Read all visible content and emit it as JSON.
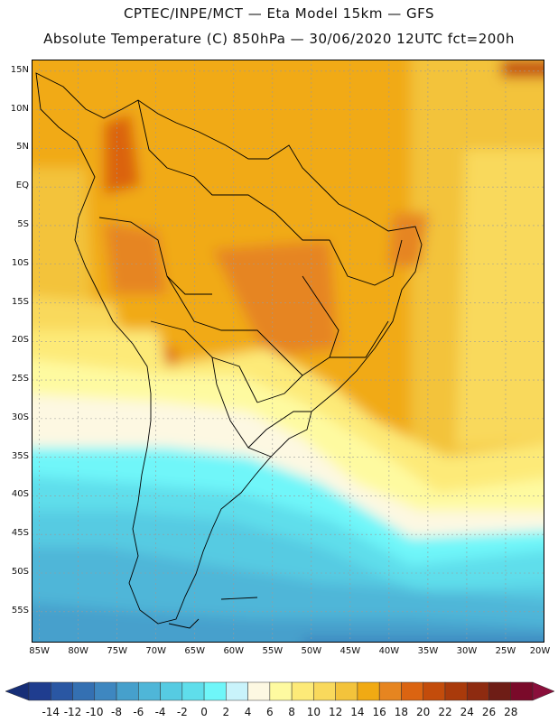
{
  "header": {
    "line1": "CPTEC/INPE/MCT —  Eta Model 15km — GFS",
    "line2": "Absolute Temperature (C) 850hPa — 30/06/2020 12UTC fct=200h"
  },
  "axes": {
    "lat_labels": [
      "15N",
      "10N",
      "5N",
      "EQ",
      "5S",
      "10S",
      "15S",
      "20S",
      "25S",
      "30S",
      "35S",
      "40S",
      "45S",
      "50S",
      "55S"
    ],
    "lat_values": [
      15,
      10,
      5,
      0,
      -5,
      -10,
      -15,
      -20,
      -25,
      -30,
      -35,
      -40,
      -45,
      -50,
      -55
    ],
    "lon_labels": [
      "85W",
      "80W",
      "75W",
      "70W",
      "65W",
      "60W",
      "55W",
      "50W",
      "45W",
      "40W",
      "35W",
      "30W",
      "25W",
      "20W"
    ],
    "lon_values": [
      -85,
      -80,
      -75,
      -70,
      -65,
      -60,
      -55,
      -50,
      -45,
      -40,
      -35,
      -30,
      -25,
      -20
    ],
    "lat_range": [
      -59,
      16.5
    ],
    "lon_range": [
      -86,
      -20
    ],
    "grid": true
  },
  "colorbar": {
    "labels": [
      "-14",
      "-12",
      "-10",
      "-8",
      "-6",
      "-4",
      "-2",
      "0",
      "2",
      "4",
      "6",
      "8",
      "10",
      "12",
      "14",
      "16",
      "18",
      "20",
      "22",
      "24",
      "26",
      "28"
    ],
    "colors": [
      "#1f3d8f",
      "#2a57a3",
      "#3470b2",
      "#3e87c0",
      "#46a0cc",
      "#4fb6d8",
      "#56cbe2",
      "#5fdeeb",
      "#6ff6f9",
      "#c9f3fb",
      "#fdf8e2",
      "#fefaa0",
      "#fdea78",
      "#f9d95c",
      "#f3c33b",
      "#f1aa13",
      "#e68520",
      "#db6411",
      "#c34c0b",
      "#a93a0b",
      "#8e2b10",
      "#6e1d16",
      "#7a0a2a"
    ],
    "left_arrow": "#162e77",
    "right_arrow": "#8a0f3b"
  }
}
